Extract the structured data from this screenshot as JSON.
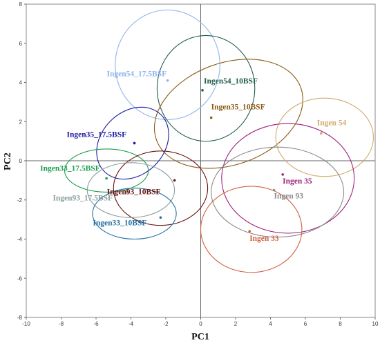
{
  "chart_data": {
    "type": "scatter",
    "xlabel": "PC1",
    "ylabel": "PC2",
    "xlim": [
      -10,
      10
    ],
    "ylim": [
      -8,
      8
    ],
    "xticks": [
      -10,
      -8,
      -6,
      -4,
      -2,
      0,
      2,
      4,
      6,
      8,
      10
    ],
    "yticks": [
      -8,
      -6,
      -4,
      -2,
      0,
      2,
      4,
      6,
      8
    ],
    "grid": false,
    "groups": [
      {
        "name": "Ingen54_17.5BSF",
        "x": -1.9,
        "y": 4.1,
        "color": "#8fb4ee",
        "ellipse": {
          "cx": -1.9,
          "cy": 4.9,
          "rx": 3.0,
          "ry": 2.8,
          "rotation": 0
        }
      },
      {
        "name": "Ingen54_10BSF",
        "x": 0.1,
        "y": 3.6,
        "color": "#1f5c4c",
        "ellipse": {
          "cx": 0.3,
          "cy": 3.7,
          "rx": 2.8,
          "ry": 2.7,
          "rotation": 0
        }
      },
      {
        "name": "Ingen35_10BSF",
        "x": 0.6,
        "y": 2.2,
        "color": "#8b5a14",
        "ellipse": {
          "cx": 1.6,
          "cy": 2.4,
          "rx": 4.4,
          "ry": 2.6,
          "rotation": 20
        }
      },
      {
        "name": "Ingen 54",
        "x": 6.9,
        "y": 1.4,
        "color": "#d0aa6a",
        "ellipse": {
          "cx": 7.1,
          "cy": 1.2,
          "rx": 2.8,
          "ry": 2.0,
          "rotation": 0
        }
      },
      {
        "name": "Ingen35_17.5BSF",
        "x": -3.8,
        "y": 0.9,
        "color": "#1a1aa0",
        "ellipse": {
          "cx": -3.9,
          "cy": 0.9,
          "rx": 2.3,
          "ry": 1.6,
          "rotation": 45
        }
      },
      {
        "name": "Ingen 35",
        "x": 4.7,
        "y": -0.7,
        "color": "#a0207a",
        "ellipse": {
          "cx": 5.0,
          "cy": -0.9,
          "rx": 3.8,
          "ry": 2.8,
          "rotation": 0
        }
      },
      {
        "name": "Ingen33_17.5BSF",
        "x": -5.4,
        "y": -0.9,
        "color": "#1a9e4a",
        "ellipse": {
          "cx": -5.4,
          "cy": -0.5,
          "rx": 2.4,
          "ry": 1.1,
          "rotation": 0
        }
      },
      {
        "name": "Ingen93_10BSF",
        "x": -1.5,
        "y": -1.0,
        "color": "#6a1010",
        "ellipse": {
          "cx": -2.3,
          "cy": -1.4,
          "rx": 2.7,
          "ry": 1.9,
          "rotation": 0
        }
      },
      {
        "name": "Ingen 93",
        "x": 4.2,
        "y": -1.5,
        "color": "#8a8a8a",
        "ellipse": {
          "cx": 4.4,
          "cy": -1.6,
          "rx": 3.8,
          "ry": 2.3,
          "rotation": 0
        }
      },
      {
        "name": "Ingen93_17.5BSF",
        "x": -4.2,
        "y": -1.6,
        "color": "#8a9e9e",
        "ellipse": {
          "cx": -4.0,
          "cy": -1.5,
          "rx": 2.5,
          "ry": 1.4,
          "rotation": 0
        }
      },
      {
        "name": "Ingen33_10BSF",
        "x": -2.3,
        "y": -2.9,
        "color": "#1f6fa0",
        "ellipse": {
          "cx": -3.8,
          "cy": -2.7,
          "rx": 2.4,
          "ry": 1.3,
          "rotation": 0
        }
      },
      {
        "name": "Ingen 33",
        "x": 2.8,
        "y": -3.6,
        "color": "#d06040",
        "ellipse": {
          "cx": 2.9,
          "cy": -3.5,
          "rx": 2.9,
          "ry": 2.2,
          "rotation": 0
        }
      }
    ]
  }
}
